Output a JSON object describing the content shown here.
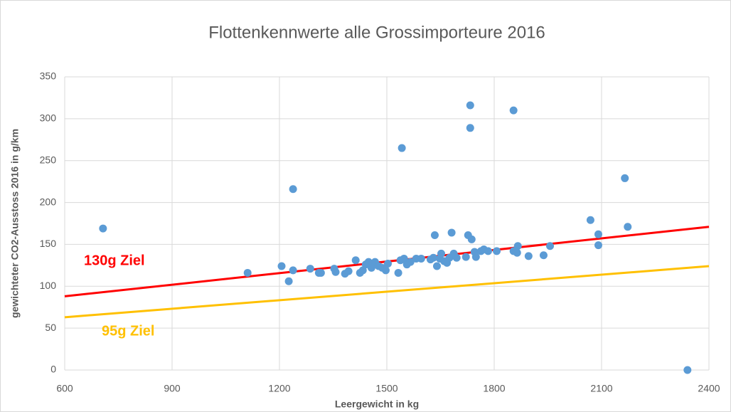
{
  "chart_data": {
    "type": "scatter",
    "title": "Flottenkennwerte alle Grossimporteure 2016",
    "xlabel": "Leergewicht in kg",
    "ylabel": "gewichteter CO2-Ausstoss 2016 in g/km",
    "xlim": [
      600,
      2400
    ],
    "ylim": [
      0,
      350
    ],
    "xticks": [
      600,
      900,
      1200,
      1500,
      1800,
      2100,
      2400
    ],
    "yticks": [
      0,
      50,
      100,
      150,
      200,
      250,
      300,
      350
    ],
    "grid": true,
    "color": "#5b9bd5",
    "x": [
      707,
      1111,
      1206,
      1226,
      1238,
      1238,
      1286,
      1310,
      1316,
      1353,
      1357,
      1383,
      1393,
      1413,
      1425,
      1433,
      1441,
      1449,
      1457,
      1467,
      1477,
      1487,
      1497,
      1503,
      1532,
      1538,
      1542,
      1548,
      1556,
      1566,
      1582,
      1596,
      1622,
      1630,
      1634,
      1640,
      1648,
      1652,
      1660,
      1668,
      1675,
      1681,
      1687,
      1695,
      1721,
      1727,
      1733,
      1733,
      1737,
      1745,
      1749,
      1763,
      1771,
      1783,
      1807,
      1854,
      1854,
      1866,
      1864,
      1896,
      1938,
      1956,
      2069,
      2091,
      2091,
      2165,
      2173,
      2340
    ],
    "values": [
      169,
      116,
      124,
      106,
      216,
      119,
      121,
      116,
      116,
      121,
      117,
      115,
      118,
      131,
      116,
      119,
      126,
      129,
      122,
      129,
      124,
      122,
      119,
      127,
      116,
      131,
      265,
      133,
      126,
      129,
      133,
      133,
      132,
      134,
      161,
      124,
      133,
      139,
      130,
      128,
      134,
      164,
      139,
      134,
      135,
      161,
      316,
      289,
      156,
      141,
      135,
      142,
      144,
      142,
      142,
      310,
      142,
      148,
      140,
      136,
      137,
      148,
      179,
      162,
      149,
      229,
      171,
      0
    ],
    "lines": [
      {
        "name": "130g Ziel",
        "color": "#ff0000",
        "x": [
          600,
          2400
        ],
        "values": [
          88,
          171
        ]
      },
      {
        "name": "95g Ziel",
        "color": "#ffc000",
        "x": [
          600,
          2400
        ],
        "values": [
          63,
          124
        ]
      }
    ]
  }
}
